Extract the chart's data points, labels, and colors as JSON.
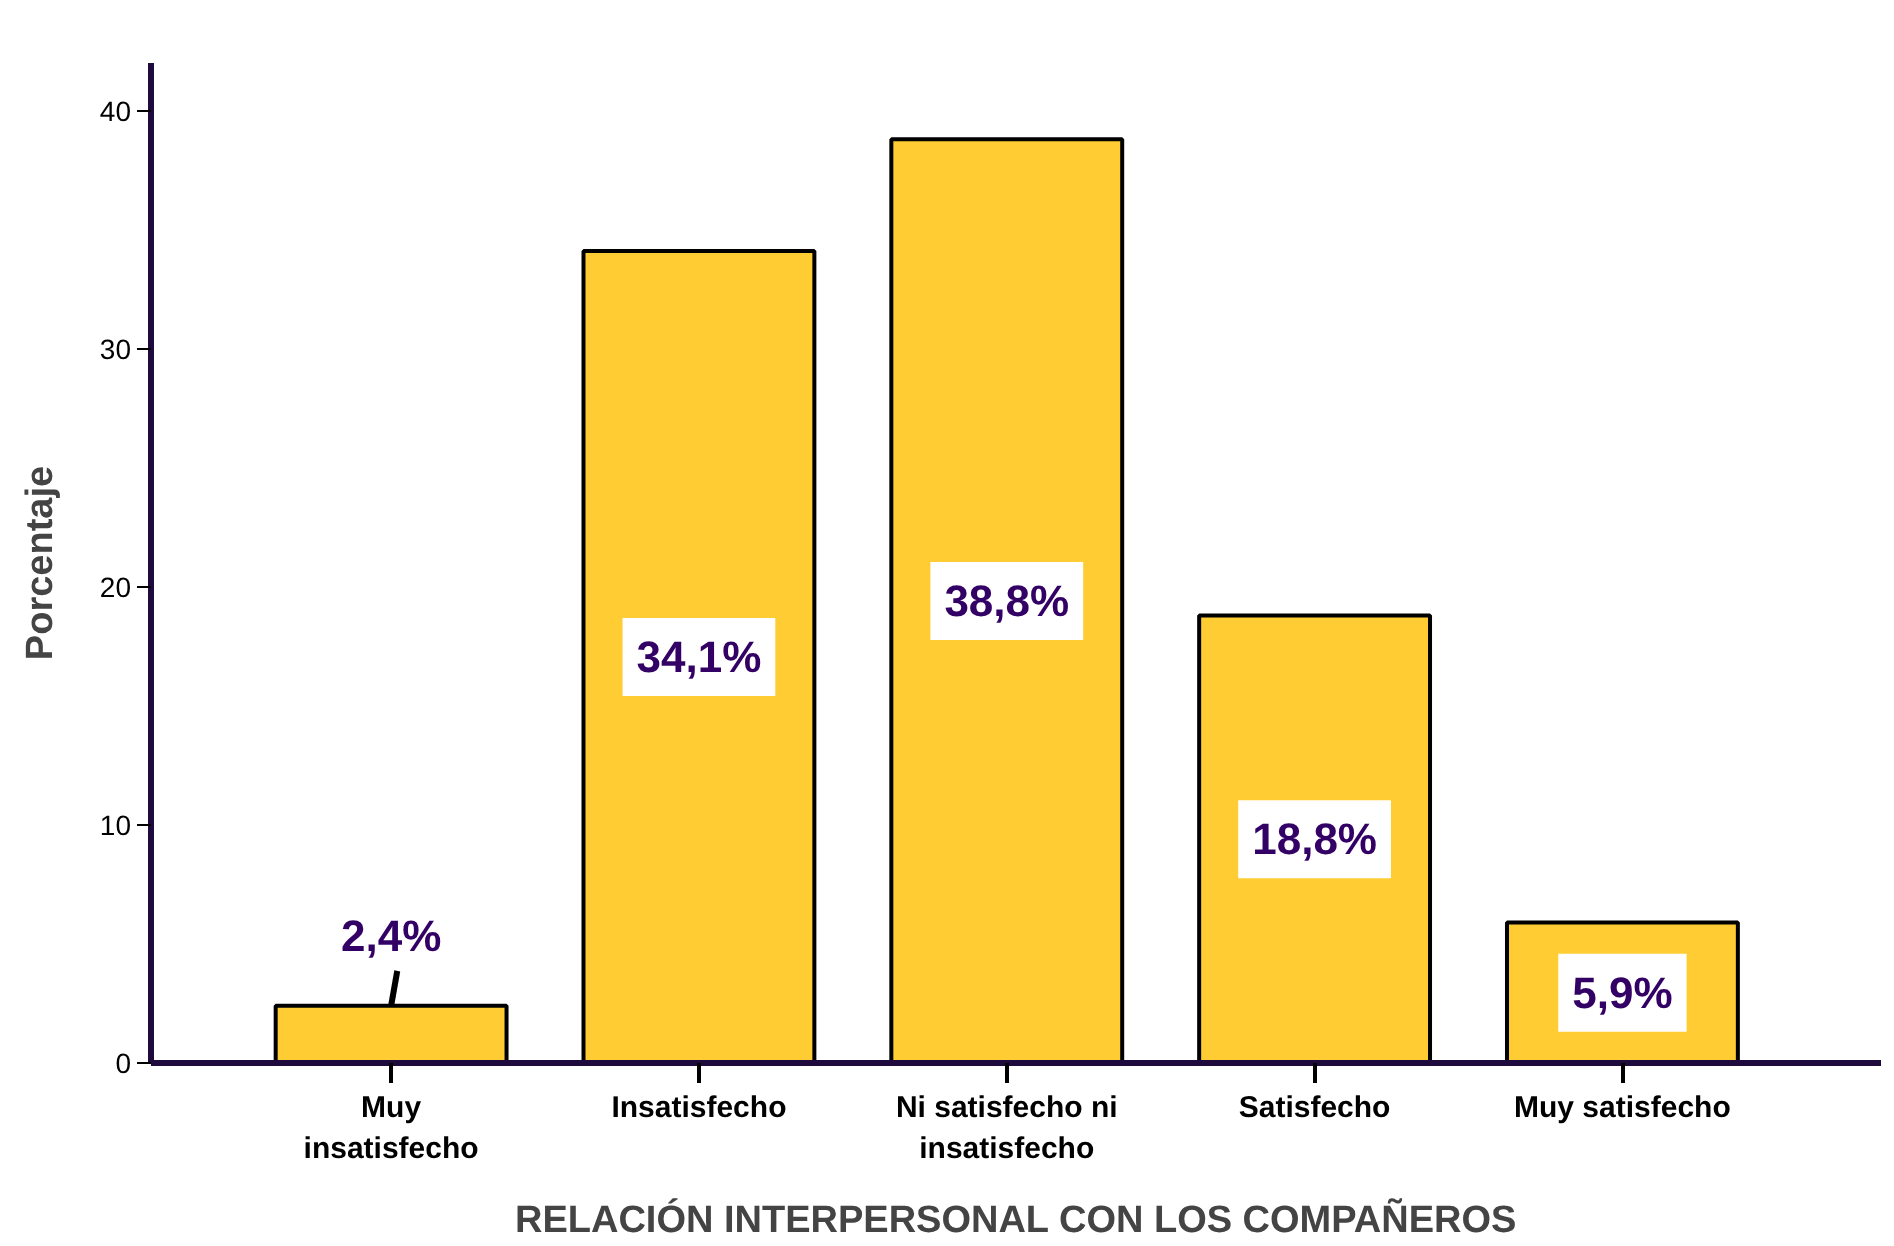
{
  "chart_data": {
    "type": "bar",
    "xlabel": "RELACIÓN INTERPERSONAL CON LOS COMPAÑEROS",
    "ylabel": "Porcentaje",
    "categories": [
      "Muy\ninsatisfecho",
      "Insatisfecho",
      "Ni satisfecho ni\ninsatisfecho",
      "Satisfecho",
      "Muy satisfecho"
    ],
    "values": [
      2.4,
      34.1,
      38.8,
      18.8,
      5.9
    ],
    "color": "#ffcc33",
    "value_labels": [
      "2,4%",
      "34,1%",
      "38,8%",
      "18,8%",
      "5,9%"
    ],
    "ylim": [
      0,
      42
    ],
    "yticks": [
      0,
      10,
      20,
      30,
      40
    ]
  }
}
